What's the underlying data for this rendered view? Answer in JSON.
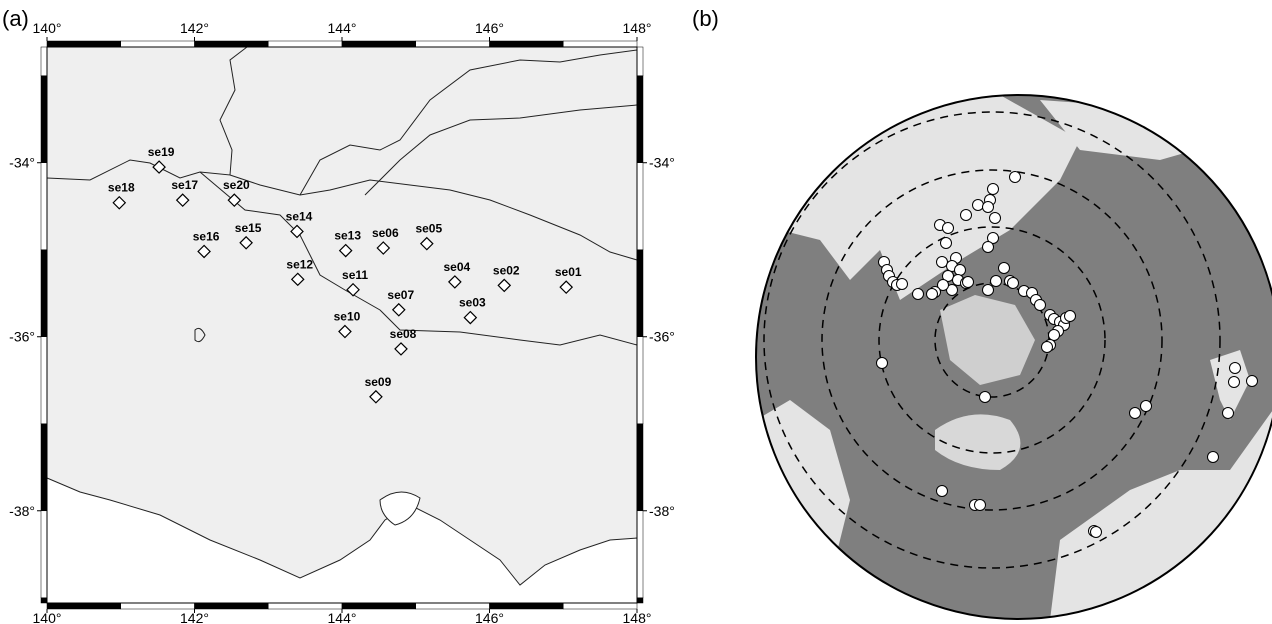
{
  "panel_a": {
    "label": "(a)",
    "type": "scatter",
    "xlim": [
      140,
      148
    ],
    "ylim": [
      -39.06,
      -32.67
    ],
    "xticks": [
      {
        "value": 140,
        "label": "140°"
      },
      {
        "value": 142,
        "label": "142°"
      },
      {
        "value": 144,
        "label": "144°"
      },
      {
        "value": 146,
        "label": "146°"
      },
      {
        "value": 148,
        "label": "148°"
      }
    ],
    "yticks": [
      {
        "value": -34,
        "label": "-34°"
      },
      {
        "value": -36,
        "label": "-36°"
      },
      {
        "value": -38,
        "label": "-38°"
      }
    ],
    "stations": [
      {
        "name": "se01",
        "lon": 147.04,
        "lat": -35.43
      },
      {
        "name": "se02",
        "lon": 146.2,
        "lat": -35.41
      },
      {
        "name": "se03",
        "lon": 145.74,
        "lat": -35.78
      },
      {
        "name": "se04",
        "lon": 145.53,
        "lat": -35.37
      },
      {
        "name": "se05",
        "lon": 145.15,
        "lat": -34.93
      },
      {
        "name": "se06",
        "lon": 144.56,
        "lat": -34.98
      },
      {
        "name": "se07",
        "lon": 144.77,
        "lat": -35.69
      },
      {
        "name": "se08",
        "lon": 144.8,
        "lat": -36.14
      },
      {
        "name": "se09",
        "lon": 144.46,
        "lat": -36.69
      },
      {
        "name": "se10",
        "lon": 144.04,
        "lat": -35.94
      },
      {
        "name": "se11",
        "lon": 144.15,
        "lat": -35.46
      },
      {
        "name": "se12",
        "lon": 143.4,
        "lat": -35.34
      },
      {
        "name": "se13",
        "lon": 144.05,
        "lat": -35.01
      },
      {
        "name": "se14",
        "lon": 143.39,
        "lat": -34.79
      },
      {
        "name": "se15",
        "lon": 142.7,
        "lat": -34.92
      },
      {
        "name": "se16",
        "lon": 142.13,
        "lat": -35.02
      },
      {
        "name": "se17",
        "lon": 141.84,
        "lat": -34.43
      },
      {
        "name": "se18",
        "lon": 140.98,
        "lat": -34.46
      },
      {
        "name": "se19",
        "lon": 141.52,
        "lat": -34.05
      },
      {
        "name": "se20",
        "lon": 142.54,
        "lat": -34.43
      }
    ]
  },
  "panel_b": {
    "label": "(b)"
  }
}
